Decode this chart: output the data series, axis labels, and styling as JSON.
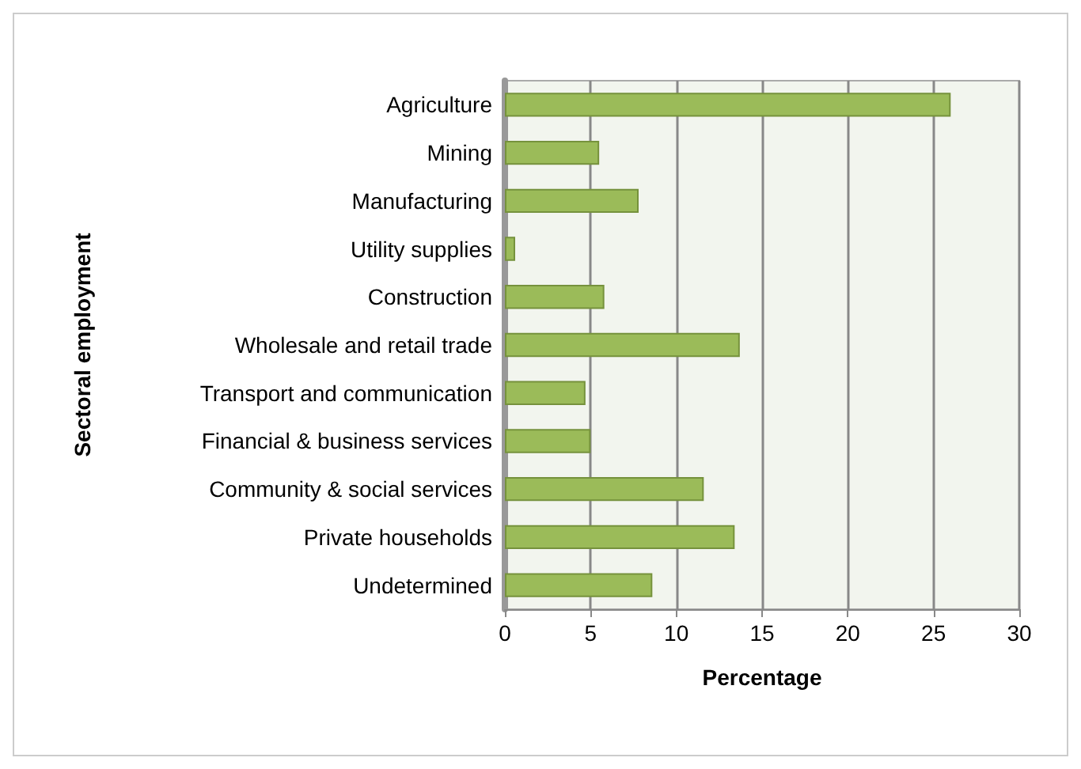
{
  "chart_data": {
    "type": "bar",
    "orientation": "horizontal",
    "xlabel": "Percentage",
    "ylabel": "Sectoral employment",
    "categories": [
      "Agriculture",
      "Mining",
      "Manufacturing",
      "Utility supplies",
      "Construction",
      "Wholesale and retail trade",
      "Transport and communication",
      "Financial & business services",
      "Community & social services",
      "Private households",
      "Undetermined"
    ],
    "values": [
      26,
      5.5,
      7.8,
      0.6,
      5.8,
      13.7,
      4.7,
      5.0,
      11.6,
      13.4,
      8.6
    ],
    "color": "#9bbb59",
    "xlim": [
      0,
      30
    ],
    "xticks": [
      0,
      5,
      10,
      15,
      20,
      25,
      30
    ],
    "grid": "x"
  }
}
